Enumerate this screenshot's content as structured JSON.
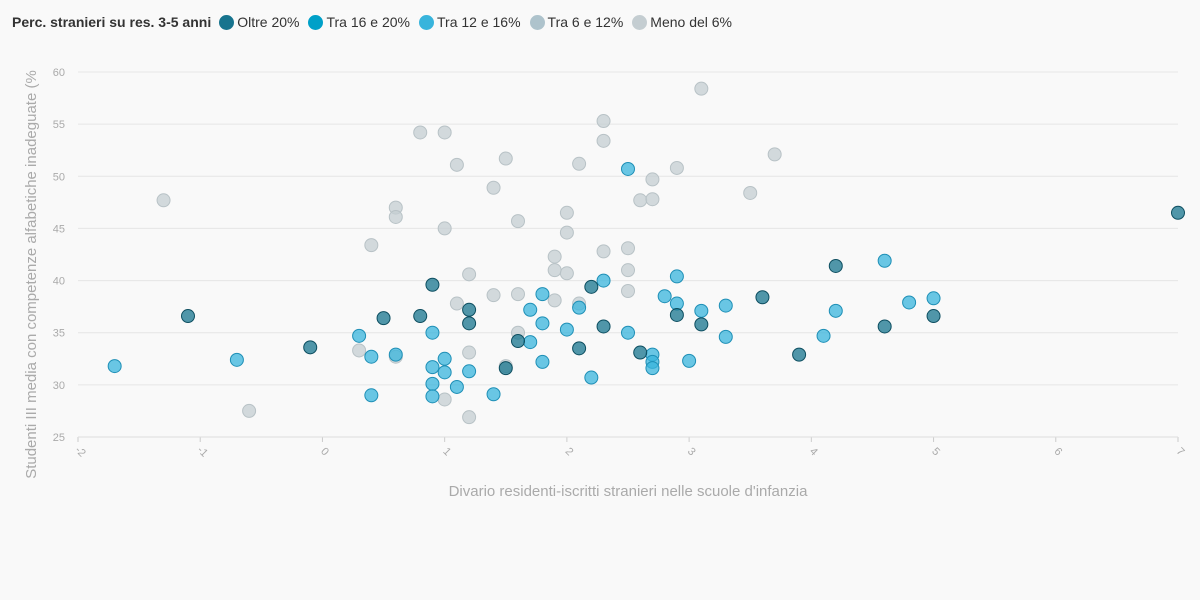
{
  "chart_data": {
    "type": "scatter",
    "legend": {
      "title": "Perc. stranieri su res. 3-5 anni",
      "placement": "top-left"
    },
    "xlabel": "Divario residenti-iscritti stranieri nelle scuole d'infanzia",
    "ylabel": "Studenti III media con competenze alfabetiche inadeguate (%",
    "xlim": [
      -2,
      7
    ],
    "ylim": [
      25,
      60
    ],
    "xticks": [
      "-2",
      "-1",
      "0",
      "1",
      "2",
      "3",
      "4",
      "5",
      "6",
      "7"
    ],
    "yticks": [
      "25",
      "30",
      "35",
      "40",
      "45",
      "50",
      "55",
      "60"
    ],
    "grid": "horizontal",
    "series": [
      {
        "name": "Meno del 6%",
        "color": "#c4cdd1",
        "points": [
          [
            -1.3,
            47.7
          ],
          [
            -0.6,
            27.5
          ],
          [
            0.3,
            33.3
          ],
          [
            0.4,
            43.4
          ],
          [
            0.6,
            47.0
          ],
          [
            0.6,
            46.1
          ],
          [
            0.6,
            32.7
          ],
          [
            0.8,
            54.2
          ],
          [
            1.0,
            54.2
          ],
          [
            1.0,
            45.0
          ],
          [
            1.0,
            28.6
          ],
          [
            1.1,
            51.1
          ],
          [
            1.1,
            37.8
          ],
          [
            1.2,
            40.6
          ],
          [
            1.2,
            33.1
          ],
          [
            1.2,
            26.9
          ],
          [
            1.4,
            48.9
          ],
          [
            1.4,
            38.6
          ],
          [
            1.5,
            51.7
          ],
          [
            1.5,
            31.8
          ],
          [
            1.6,
            45.7
          ],
          [
            1.6,
            38.7
          ],
          [
            1.6,
            35.0
          ],
          [
            1.9,
            42.3
          ],
          [
            1.9,
            41.0
          ],
          [
            1.9,
            38.1
          ],
          [
            2.0,
            46.5
          ],
          [
            2.0,
            44.6
          ],
          [
            2.0,
            40.7
          ],
          [
            2.1,
            51.2
          ],
          [
            2.1,
            37.8
          ],
          [
            2.3,
            55.3
          ],
          [
            2.3,
            53.4
          ],
          [
            2.3,
            42.8
          ],
          [
            2.5,
            43.1
          ],
          [
            2.5,
            41.0
          ],
          [
            2.5,
            39.0
          ],
          [
            2.6,
            47.7
          ],
          [
            2.7,
            49.7
          ],
          [
            2.7,
            47.8
          ],
          [
            2.9,
            50.8
          ],
          [
            3.1,
            58.4
          ],
          [
            3.5,
            48.4
          ],
          [
            3.7,
            52.1
          ]
        ]
      },
      {
        "name": "Tra 6 e 12%",
        "color": "#aec3cc",
        "points": []
      },
      {
        "name": "Tra 12 e 16%",
        "color": "#38b4dc",
        "points": [
          [
            -1.7,
            31.8
          ],
          [
            -0.7,
            32.4
          ],
          [
            0.3,
            34.7
          ],
          [
            0.4,
            32.7
          ],
          [
            0.4,
            29.0
          ],
          [
            0.6,
            32.9
          ],
          [
            0.9,
            35.0
          ],
          [
            0.9,
            31.7
          ],
          [
            0.9,
            30.1
          ],
          [
            0.9,
            28.9
          ],
          [
            1.0,
            32.5
          ],
          [
            1.0,
            31.2
          ],
          [
            1.1,
            29.8
          ],
          [
            1.2,
            31.3
          ],
          [
            1.4,
            29.1
          ],
          [
            1.7,
            37.2
          ],
          [
            1.7,
            34.1
          ],
          [
            1.8,
            38.7
          ],
          [
            1.8,
            35.9
          ],
          [
            1.8,
            32.2
          ],
          [
            2.0,
            35.3
          ],
          [
            2.1,
            37.4
          ],
          [
            2.2,
            30.7
          ],
          [
            2.3,
            40.0
          ],
          [
            2.5,
            50.7
          ],
          [
            2.5,
            35.0
          ],
          [
            2.7,
            32.9
          ],
          [
            2.7,
            32.2
          ],
          [
            2.7,
            31.6
          ],
          [
            2.8,
            38.5
          ],
          [
            2.9,
            40.4
          ],
          [
            2.9,
            37.8
          ],
          [
            3.0,
            32.3
          ],
          [
            3.1,
            37.1
          ],
          [
            3.3,
            37.6
          ],
          [
            3.3,
            34.6
          ],
          [
            4.1,
            34.7
          ],
          [
            4.2,
            37.1
          ],
          [
            4.6,
            41.9
          ],
          [
            4.8,
            37.9
          ],
          [
            5.0,
            38.3
          ]
        ]
      },
      {
        "name": "Tra 16 e 20%",
        "color": "#00a0c8",
        "points": []
      },
      {
        "name": "Oltre 20%",
        "color": "#17748e",
        "points": [
          [
            -1.1,
            36.6
          ],
          [
            -0.1,
            33.6
          ],
          [
            0.5,
            36.4
          ],
          [
            0.8,
            36.6
          ],
          [
            0.9,
            39.6
          ],
          [
            1.2,
            37.2
          ],
          [
            1.2,
            35.9
          ],
          [
            1.5,
            31.6
          ],
          [
            1.6,
            34.2
          ],
          [
            2.1,
            33.5
          ],
          [
            2.2,
            39.4
          ],
          [
            2.3,
            35.6
          ],
          [
            2.6,
            33.1
          ],
          [
            2.9,
            36.7
          ],
          [
            3.1,
            35.8
          ],
          [
            3.6,
            38.4
          ],
          [
            3.9,
            32.9
          ],
          [
            4.2,
            41.4
          ],
          [
            4.6,
            35.6
          ],
          [
            5.0,
            36.6
          ],
          [
            7.0,
            46.5
          ]
        ]
      }
    ],
    "legend_order": [
      "Oltre 20%",
      "Tra 16 e 20%",
      "Tra 12 e 16%",
      "Tra 6 e 12%",
      "Meno del 6%"
    ]
  }
}
